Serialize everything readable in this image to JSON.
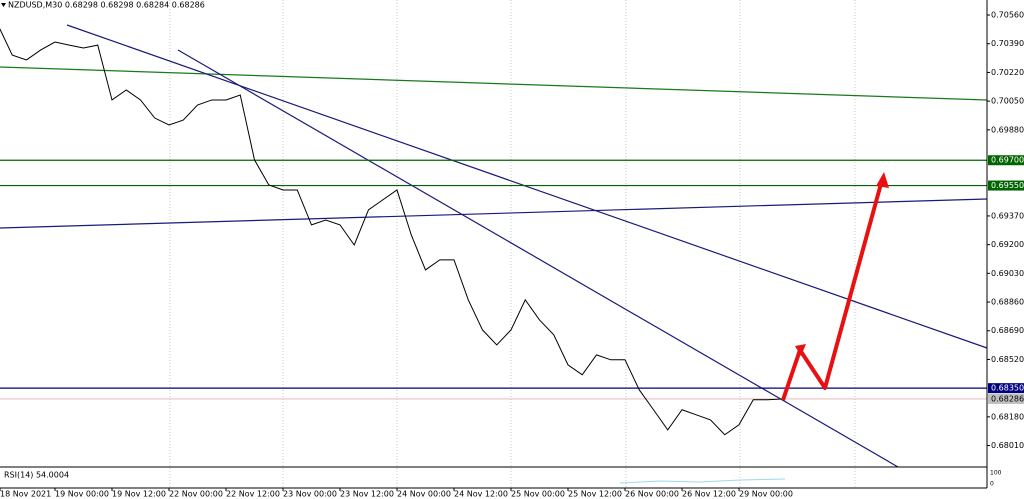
{
  "chart_data": {
    "type": "line",
    "title": "NZDUSD,M30 0.68298 0.68298 0.68284 0.68286",
    "categories": [
      "18 Nov 2021",
      null,
      null,
      null,
      "19 Nov 00:00",
      null,
      null,
      null,
      "19 Nov 12:00",
      null,
      null,
      null,
      "22 Nov 00:00",
      null,
      null,
      null,
      "22 Nov 12:00",
      null,
      null,
      null,
      "23 Nov 00:00",
      null,
      null,
      null,
      "23 Nov 12:00",
      null,
      null,
      null,
      "24 Nov 00:00",
      null,
      null,
      null,
      "24 Nov 12:00",
      null,
      null,
      null,
      "25 Nov 00:00",
      null,
      null,
      null,
      "25 Nov 12:00",
      null,
      null,
      null,
      "26 Nov 00:00",
      null,
      null,
      null,
      "26 Nov 12:00",
      null,
      null,
      null,
      "29 Nov 00:00",
      null,
      null,
      null
    ],
    "series": [
      {
        "color": "#000000",
        "values": [
          0.70501,
          0.70323,
          0.70294,
          0.70353,
          0.704,
          0.70382,
          0.70365,
          0.70382,
          0.70057,
          0.70116,
          0.70057,
          0.6995,
          0.69909,
          0.69938,
          0.70027,
          0.70057,
          0.70057,
          0.70086,
          0.69702,
          0.69554,
          0.69524,
          0.69524,
          0.69317,
          0.69346,
          0.69317,
          0.69198,
          0.69406,
          0.69465,
          0.69524,
          0.69258,
          0.6905,
          0.6911,
          0.6911,
          0.68873,
          0.68695,
          0.68606,
          0.68695,
          0.68873,
          0.68754,
          0.68666,
          0.68488,
          0.68429,
          0.68547,
          0.68518,
          0.68518,
          0.6834,
          0.68222,
          0.68103,
          0.68222,
          0.68192,
          0.68162,
          0.68074,
          0.68133,
          0.68281,
          0.68281,
          0.68286
        ]
      }
    ],
    "ylim": [
      0.67883,
      0.70649
    ],
    "yticks": [
      {
        "value": 0.7056,
        "label": "0.70560"
      },
      {
        "value": 0.7039,
        "label": "0.70390"
      },
      {
        "value": 0.7022,
        "label": "0.70220"
      },
      {
        "value": 0.7005,
        "label": "0.70050"
      },
      {
        "value": 0.6988,
        "label": "0.69880"
      },
      {
        "value": 0.6937,
        "label": "0.69370"
      },
      {
        "value": 0.692,
        "label": "0.69200"
      },
      {
        "value": 0.6903,
        "label": "0.69030"
      },
      {
        "value": 0.6886,
        "label": "0.68860"
      },
      {
        "value": 0.6869,
        "label": "0.68690"
      },
      {
        "value": 0.6852,
        "label": "0.68520"
      },
      {
        "value": 0.6818,
        "label": "0.68180"
      },
      {
        "value": 0.6801,
        "label": "0.68010"
      }
    ],
    "levels": [
      {
        "value": 0.697,
        "label": "0.69700",
        "color": "#006400"
      },
      {
        "value": 0.6955,
        "label": "0.69550",
        "color": "#006400"
      },
      {
        "value": 0.6835,
        "label": "0.68350",
        "color": "#000080"
      },
      {
        "value": 0.68286,
        "label": "0.68286",
        "color": "#c0c0c0"
      }
    ],
    "indicator": {
      "label": "RSI(14) 54.0004",
      "scale": [
        "100",
        "0"
      ]
    }
  }
}
